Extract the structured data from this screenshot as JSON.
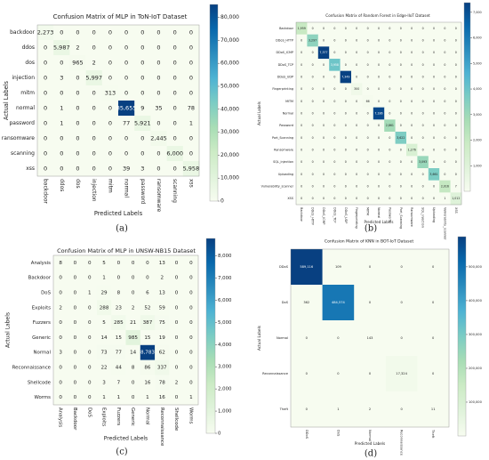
{
  "chart_data": [
    {
      "type": "heatmap",
      "title": "Confusion Matrix of MLP in ToN-IoT Dataset",
      "xlabel": "Predicted Labels",
      "ylabel": "Actual Labels",
      "caption": "(a)",
      "categories": [
        "backdoor",
        "ddos",
        "dos",
        "injection",
        "mitm",
        "normal",
        "password",
        "ransomware",
        "scanning",
        "xss"
      ],
      "values": [
        [
          2273,
          0,
          0,
          0,
          0,
          0,
          0,
          0,
          0,
          0
        ],
        [
          0,
          5987,
          2,
          0,
          0,
          0,
          0,
          0,
          0,
          0
        ],
        [
          0,
          0,
          965,
          2,
          0,
          0,
          0,
          0,
          0,
          0
        ],
        [
          0,
          3,
          0,
          5997,
          0,
          0,
          0,
          0,
          0,
          0
        ],
        [
          0,
          0,
          0,
          0,
          313,
          0,
          0,
          0,
          0,
          0
        ],
        [
          0,
          1,
          0,
          0,
          0,
          85655,
          9,
          35,
          0,
          78
        ],
        [
          0,
          1,
          0,
          0,
          0,
          77,
          5921,
          0,
          0,
          1
        ],
        [
          0,
          0,
          0,
          0,
          0,
          0,
          0,
          2445,
          0,
          0
        ],
        [
          0,
          0,
          0,
          0,
          0,
          0,
          0,
          0,
          6000,
          0
        ],
        [
          0,
          0,
          0,
          0,
          0,
          39,
          3,
          0,
          0,
          5958
        ]
      ],
      "value_labels": [
        [
          "2,273",
          "0",
          "0",
          "0",
          "0",
          "0",
          "0",
          "0",
          "0",
          "0"
        ],
        [
          "0",
          "5,987",
          "2",
          "0",
          "0",
          "0",
          "0",
          "0",
          "0",
          "0"
        ],
        [
          "0",
          "0",
          "965",
          "2",
          "0",
          "0",
          "0",
          "0",
          "0",
          "0"
        ],
        [
          "0",
          "3",
          "0",
          "5,997",
          "0",
          "0",
          "0",
          "0",
          "0",
          "0"
        ],
        [
          "0",
          "0",
          "0",
          "0",
          "313",
          "0",
          "0",
          "0",
          "0",
          "0"
        ],
        [
          "0",
          "1",
          "0",
          "0",
          "0",
          "85,655",
          "9",
          "35",
          "0",
          "78"
        ],
        [
          "0",
          "1",
          "0",
          "0",
          "0",
          "77",
          "5,921",
          "0",
          "0",
          "1"
        ],
        [
          "0",
          "0",
          "0",
          "0",
          "0",
          "0",
          "0",
          "2,445",
          "0",
          "0"
        ],
        [
          "0",
          "0",
          "0",
          "0",
          "0",
          "0",
          "0",
          "0",
          "6,000",
          "0"
        ],
        [
          "0",
          "0",
          "0",
          "0",
          "0",
          "39",
          "3",
          "0",
          "0",
          "5,958"
        ]
      ],
      "zlim": [
        0,
        85655
      ],
      "zticks": [
        0,
        {
          "value": 10000,
          "label": "10,000"
        },
        {
          "value": 20000,
          "label": "20,000"
        },
        {
          "value": 30000,
          "label": "30,000"
        },
        {
          "value": 40000,
          "label": "40,000"
        },
        {
          "value": 50000,
          "label": "50,000"
        },
        {
          "value": 60000,
          "label": "60,000"
        },
        {
          "value": 70000,
          "label": "70,000"
        },
        {
          "value": 80000,
          "label": "80,000"
        }
      ],
      "colorscale": [
        "#f7fcf0",
        "#e0f3db",
        "#ccebc5",
        "#a8ddb5",
        "#7bccc4",
        "#4eb3d3",
        "#2b8cbe",
        "#0868ac",
        "#084081"
      ]
    },
    {
      "type": "heatmap",
      "title": "Confusion Matrix of Random Forest in Edge-IIoT Dataset",
      "xlabel": "Predicted Labels",
      "ylabel": "Actual Labels",
      "caption": "(b)",
      "categories": [
        "Backdoor",
        "DDoS_HTTP",
        "DDoS_ICMP",
        "DDoS_TCP",
        "DDoS_UDP",
        "Fingerprinting",
        "MITM",
        "Normal",
        "Password",
        "Port_Scanning",
        "Ransomware",
        "SQL_injection",
        "Uploading",
        "Vulnerability_scanner",
        "XSS"
      ],
      "values": [
        [
          1959,
          0,
          0,
          0,
          0,
          0,
          0,
          0,
          0,
          0,
          0,
          0,
          0,
          0,
          0
        ],
        [
          0,
          3297,
          0,
          0,
          0,
          0,
          0,
          0,
          0,
          0,
          0,
          0,
          0,
          0,
          0
        ],
        [
          0,
          0,
          7377,
          0,
          0,
          0,
          0,
          0,
          0,
          0,
          0,
          0,
          0,
          0,
          0
        ],
        [
          0,
          0,
          0,
          3958,
          0,
          0,
          0,
          0,
          0,
          0,
          0,
          0,
          0,
          0,
          0
        ],
        [
          0,
          0,
          0,
          0,
          7349,
          0,
          0,
          0,
          0,
          0,
          0,
          0,
          0,
          0,
          0
        ],
        [
          0,
          0,
          0,
          0,
          0,
          300,
          0,
          0,
          0,
          0,
          0,
          0,
          0,
          0,
          0
        ],
        [
          0,
          0,
          0,
          0,
          0,
          0,
          66,
          0,
          0,
          0,
          0,
          0,
          0,
          0,
          0
        ],
        [
          0,
          0,
          0,
          0,
          0,
          0,
          0,
          7186,
          0,
          0,
          0,
          0,
          0,
          0,
          0
        ],
        [
          0,
          0,
          0,
          0,
          0,
          0,
          0,
          0,
          2861,
          0,
          0,
          0,
          0,
          0,
          0
        ],
        [
          0,
          0,
          0,
          0,
          0,
          0,
          0,
          0,
          0,
          3622,
          0,
          0,
          0,
          0,
          0
        ],
        [
          0,
          0,
          0,
          0,
          0,
          0,
          0,
          0,
          0,
          0,
          1276,
          0,
          0,
          0,
          0
        ],
        [
          0,
          0,
          0,
          0,
          0,
          0,
          0,
          0,
          0,
          0,
          0,
          3093,
          0,
          0,
          0
        ],
        [
          0,
          0,
          0,
          0,
          0,
          0,
          0,
          0,
          0,
          0,
          0,
          0,
          3661,
          0,
          0
        ],
        [
          0,
          0,
          0,
          0,
          0,
          0,
          0,
          0,
          0,
          0,
          0,
          0,
          0,
          2016,
          7
        ],
        [
          0,
          0,
          0,
          0,
          0,
          0,
          0,
          0,
          0,
          0,
          0,
          0,
          0,
          1,
          1012
        ]
      ],
      "value_labels": [
        [
          "1,959",
          "0",
          "0",
          "0",
          "0",
          "0",
          "0",
          "0",
          "0",
          "0",
          "0",
          "0",
          "0",
          "0",
          "0"
        ],
        [
          "0",
          "3,297",
          "0",
          "0",
          "0",
          "0",
          "0",
          "0",
          "0",
          "0",
          "0",
          "0",
          "0",
          "0",
          "0"
        ],
        [
          "0",
          "0",
          "7,377",
          "0",
          "0",
          "0",
          "0",
          "0",
          "0",
          "0",
          "0",
          "0",
          "0",
          "0",
          "0"
        ],
        [
          "0",
          "0",
          "0",
          "3,958",
          "0",
          "0",
          "0",
          "0",
          "0",
          "0",
          "0",
          "0",
          "0",
          "0",
          "0"
        ],
        [
          "0",
          "0",
          "0",
          "0",
          "7,349",
          "0",
          "0",
          "0",
          "0",
          "0",
          "0",
          "0",
          "0",
          "0",
          "0"
        ],
        [
          "0",
          "0",
          "0",
          "0",
          "0",
          "300",
          "0",
          "0",
          "0",
          "0",
          "0",
          "0",
          "0",
          "0",
          "0"
        ],
        [
          "0",
          "0",
          "0",
          "0",
          "0",
          "0",
          "66",
          "0",
          "0",
          "0",
          "0",
          "0",
          "0",
          "0",
          "0"
        ],
        [
          "0",
          "0",
          "0",
          "0",
          "0",
          "0",
          "0",
          "7,186",
          "0",
          "0",
          "0",
          "0",
          "0",
          "0",
          "0"
        ],
        [
          "0",
          "0",
          "0",
          "0",
          "0",
          "0",
          "0",
          "0",
          "2,861",
          "0",
          "0",
          "0",
          "0",
          "0",
          "0"
        ],
        [
          "0",
          "0",
          "0",
          "0",
          "0",
          "0",
          "0",
          "0",
          "0",
          "3,622",
          "0",
          "0",
          "0",
          "0",
          "0"
        ],
        [
          "0",
          "0",
          "0",
          "0",
          "0",
          "0",
          "0",
          "0",
          "0",
          "0",
          "1,276",
          "0",
          "0",
          "0",
          "0"
        ],
        [
          "0",
          "0",
          "0",
          "0",
          "0",
          "0",
          "0",
          "0",
          "0",
          "0",
          "0",
          "3,093",
          "0",
          "0",
          "0"
        ],
        [
          "0",
          "0",
          "0",
          "0",
          "0",
          "0",
          "0",
          "0",
          "0",
          "0",
          "0",
          "0",
          "3,661",
          "0",
          "0"
        ],
        [
          "0",
          "0",
          "0",
          "0",
          "0",
          "0",
          "0",
          "0",
          "0",
          "0",
          "0",
          "0",
          "0",
          "2,016",
          "7"
        ],
        [
          "0",
          "0",
          "0",
          "0",
          "0",
          "0",
          "0",
          "0",
          "0",
          "0",
          "0",
          "0",
          "0",
          "1",
          "1,012"
        ]
      ],
      "zlim": [
        0,
        7377
      ],
      "zticks": [
        {
          "value": 1000,
          "label": "1,000"
        },
        {
          "value": 2000,
          "label": "2,000"
        },
        {
          "value": 3000,
          "label": "3,000"
        },
        {
          "value": 4000,
          "label": "4,000"
        },
        {
          "value": 5000,
          "label": "5,000"
        },
        {
          "value": 6000,
          "label": "6,000"
        },
        {
          "value": 7000,
          "label": "7,000"
        }
      ],
      "colorscale": [
        "#f7fcf0",
        "#e0f3db",
        "#ccebc5",
        "#a8ddb5",
        "#7bccc4",
        "#4eb3d3",
        "#2b8cbe",
        "#0868ac",
        "#084081"
      ]
    },
    {
      "type": "heatmap",
      "title": "Confusion Matrix of MLP in UNSW-NB15 Dataset",
      "xlabel": "Predicted Labels",
      "ylabel": "Actual Labels",
      "caption": "(c)",
      "categories": [
        "Analysis",
        "Backdoor",
        "DoS",
        "Exploits",
        "Fuzzers",
        "Generic",
        "Normal",
        "Reconnaissance",
        "Shellcode",
        "Worms"
      ],
      "values": [
        [
          8,
          0,
          0,
          5,
          0,
          0,
          0,
          13,
          0,
          0
        ],
        [
          0,
          0,
          0,
          1,
          0,
          0,
          0,
          2,
          0,
          0
        ],
        [
          0,
          0,
          1,
          29,
          8,
          0,
          6,
          13,
          0,
          0
        ],
        [
          2,
          0,
          0,
          288,
          23,
          2,
          52,
          59,
          0,
          0
        ],
        [
          0,
          0,
          0,
          5,
          285,
          21,
          387,
          75,
          0,
          0
        ],
        [
          0,
          0,
          0,
          14,
          15,
          985,
          15,
          19,
          0,
          0
        ],
        [
          3,
          0,
          0,
          73,
          77,
          14,
          8783,
          62,
          0,
          0
        ],
        [
          0,
          0,
          0,
          22,
          44,
          8,
          86,
          337,
          0,
          0
        ],
        [
          0,
          0,
          0,
          3,
          7,
          0,
          16,
          78,
          2,
          0
        ],
        [
          0,
          0,
          0,
          1,
          1,
          0,
          1,
          16,
          0,
          1
        ]
      ],
      "value_labels": [
        [
          "8",
          "0",
          "0",
          "5",
          "0",
          "0",
          "0",
          "13",
          "0",
          "0"
        ],
        [
          "0",
          "0",
          "0",
          "1",
          "0",
          "0",
          "0",
          "2",
          "0",
          "0"
        ],
        [
          "0",
          "0",
          "1",
          "29",
          "8",
          "0",
          "6",
          "13",
          "0",
          "0"
        ],
        [
          "2",
          "0",
          "0",
          "288",
          "23",
          "2",
          "52",
          "59",
          "0",
          "0"
        ],
        [
          "0",
          "0",
          "0",
          "5",
          "285",
          "21",
          "387",
          "75",
          "0",
          "0"
        ],
        [
          "0",
          "0",
          "0",
          "14",
          "15",
          "985",
          "15",
          "19",
          "0",
          "0"
        ],
        [
          "3",
          "0",
          "0",
          "73",
          "77",
          "14",
          "8,783",
          "62",
          "0",
          "0"
        ],
        [
          "0",
          "0",
          "0",
          "22",
          "44",
          "8",
          "86",
          "337",
          "0",
          "0"
        ],
        [
          "0",
          "0",
          "0",
          "3",
          "7",
          "0",
          "16",
          "78",
          "2",
          "0"
        ],
        [
          "0",
          "0",
          "0",
          "1",
          "1",
          "0",
          "1",
          "16",
          "0",
          "1"
        ]
      ],
      "zlim": [
        0,
        8783
      ],
      "zticks": [
        0,
        {
          "value": 1000,
          "label": "1,000"
        },
        {
          "value": 2000,
          "label": "2,000"
        },
        {
          "value": 3000,
          "label": "3,000"
        },
        {
          "value": 4000,
          "label": "4,000"
        },
        {
          "value": 5000,
          "label": "5,000"
        },
        {
          "value": 6000,
          "label": "6,000"
        },
        {
          "value": 7000,
          "label": "7,000"
        },
        {
          "value": 8000,
          "label": "8,000"
        }
      ],
      "colorscale": [
        "#f7fcf0",
        "#e0f3db",
        "#ccebc5",
        "#a8ddb5",
        "#7bccc4",
        "#4eb3d3",
        "#2b8cbe",
        "#0868ac",
        "#084081"
      ]
    },
    {
      "type": "heatmap",
      "title": "Confusion Matrix of KNN in BOT-IoT Dataset",
      "xlabel": "Predicted Labels",
      "ylabel": "Actual Labels",
      "caption": "(d)",
      "categories": [
        "DDoS",
        "DoS",
        "Normal",
        "Reconnaissance",
        "Theft"
      ],
      "values": [
        [
          589116,
          109,
          0,
          0,
          0
        ],
        [
          362,
          484574,
          0,
          0,
          0
        ],
        [
          0,
          0,
          143,
          0,
          0
        ],
        [
          0,
          0,
          0,
          17324,
          0
        ],
        [
          0,
          1,
          2,
          0,
          11
        ]
      ],
      "value_labels": [
        [
          "589,116",
          "109",
          "0",
          "0",
          "0"
        ],
        [
          "362",
          "484,574",
          "0",
          "0",
          "0"
        ],
        [
          "0",
          "0",
          "143",
          "0",
          "0"
        ],
        [
          "0",
          "0",
          "0",
          "17,324",
          "0"
        ],
        [
          "0",
          "1",
          "2",
          "0",
          "11"
        ]
      ],
      "zlim": [
        0,
        589116
      ],
      "zticks": [
        {
          "value": 100000,
          "label": "100,000"
        },
        {
          "value": 200000,
          "label": "200,000"
        },
        {
          "value": 300000,
          "label": "300,000"
        },
        {
          "value": 400000,
          "label": "400,000"
        },
        {
          "value": 500000,
          "label": "500,000"
        }
      ],
      "colorscale": [
        "#f7fcf0",
        "#e0f3db",
        "#ccebc5",
        "#a8ddb5",
        "#7bccc4",
        "#4eb3d3",
        "#2b8cbe",
        "#0868ac",
        "#084081"
      ]
    }
  ]
}
